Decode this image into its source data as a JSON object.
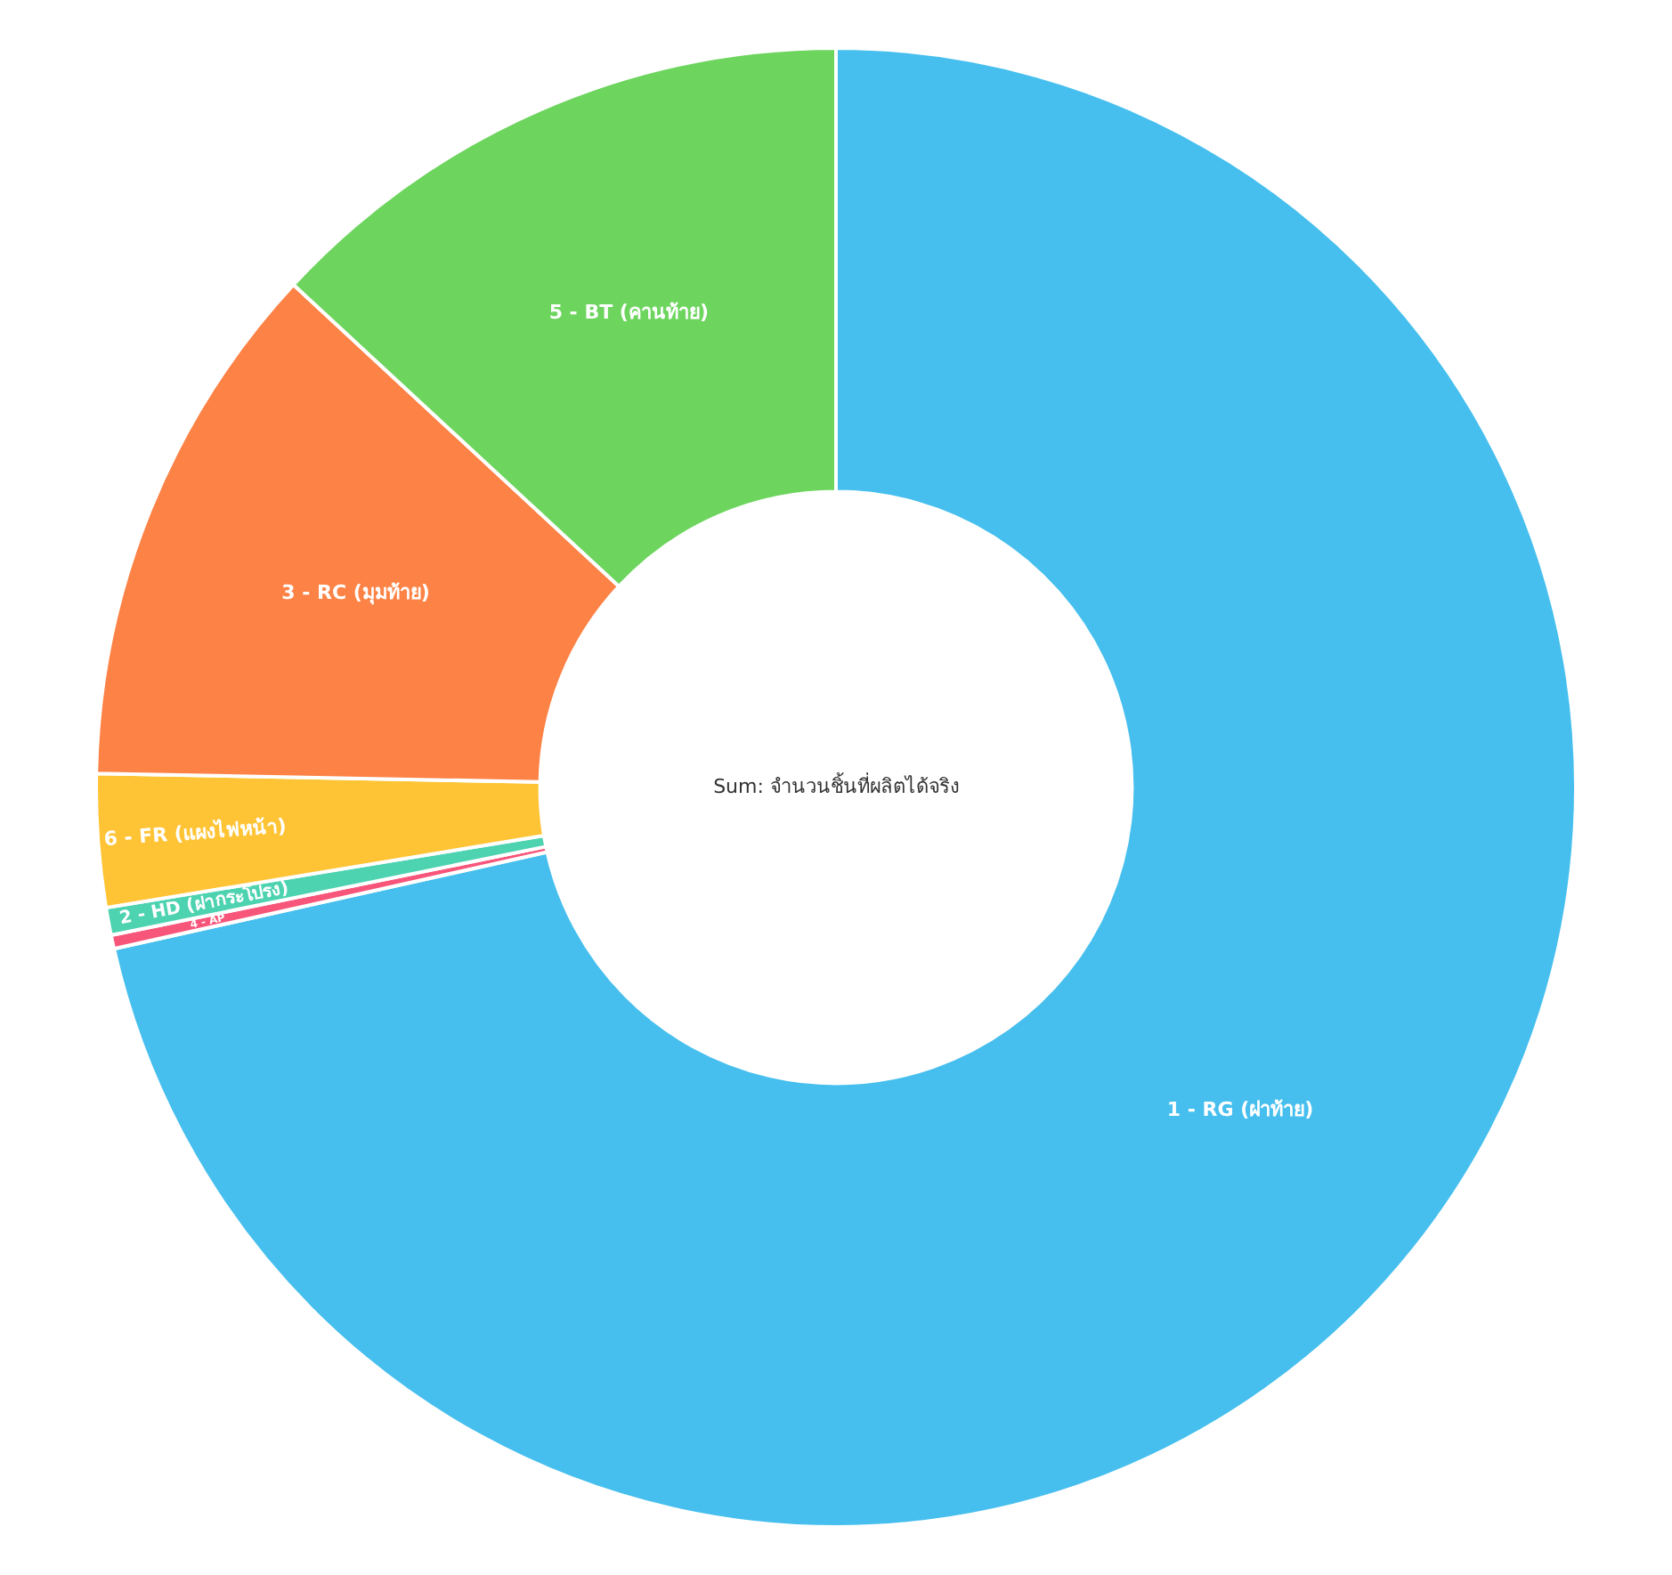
{
  "chart_data": {
    "type": "donut",
    "title": "Sum: จำนวนชิ้นที่ผลิตได้จริง",
    "categories": [
      "1 - RG (ฝาท้าย)",
      "4 - AP",
      "2 - HD (ฝากระโปรง)",
      "6 - FR (แผงไฟหน้า)",
      "3 - RC (มุมท้าย)",
      "5 - BT (คานท้าย)"
    ],
    "values": [
      71.5,
      0.3,
      0.6,
      2.9,
      11.6,
      13.1
    ],
    "colors": [
      "#46bfee",
      "#f7567a",
      "#4dd3b0",
      "#ffc435",
      "#fd8245",
      "#6dd55e"
    ],
    "legend": false
  }
}
